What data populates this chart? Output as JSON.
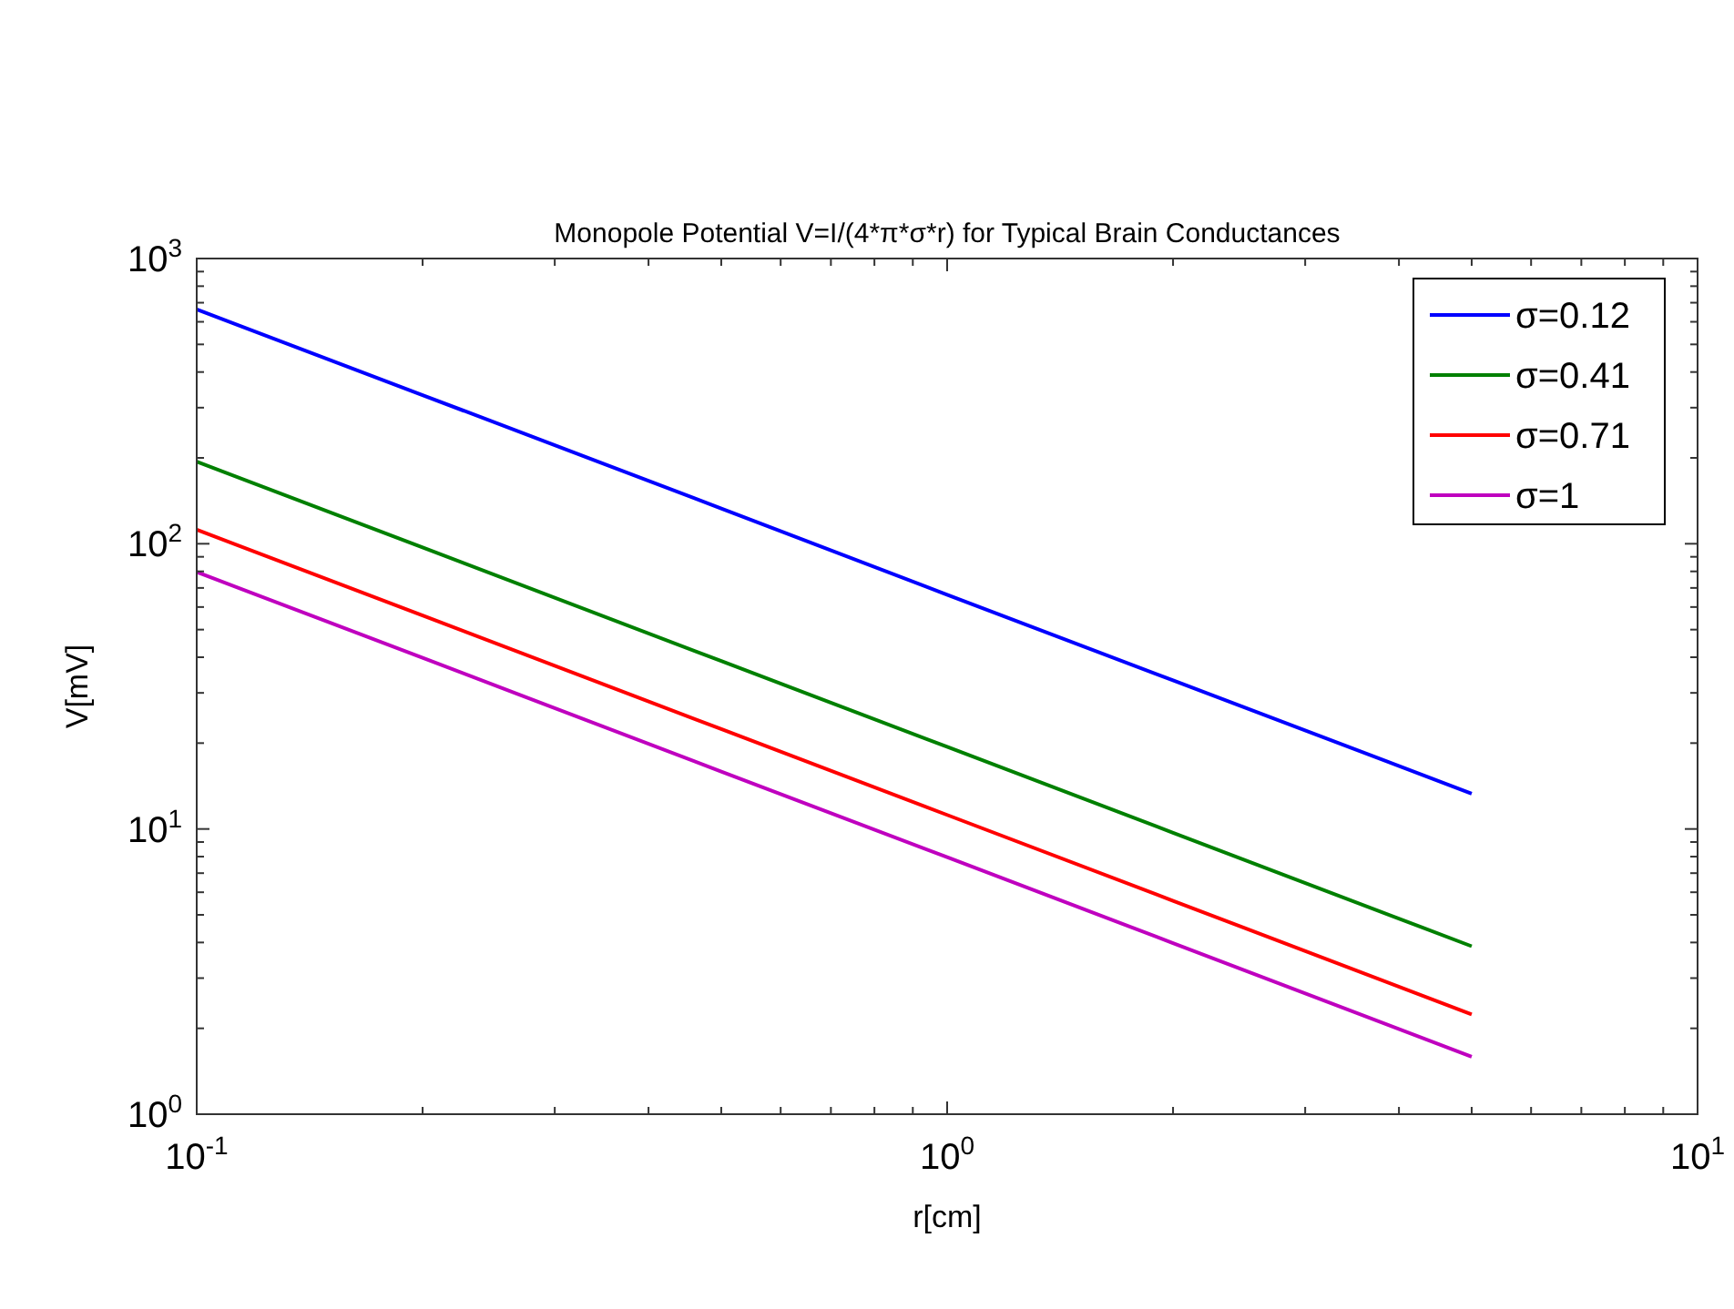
{
  "chart_data": {
    "type": "line",
    "title": "Monopole Potential V=I/(4*π*σ*r) for Typical Brain Conductances",
    "xlabel": "r[cm]",
    "ylabel": "V[mV]",
    "log": "xy",
    "grid": false,
    "legend": "top right",
    "line_style": "solid",
    "marker": "none",
    "x": [
      0.1,
      0.2,
      0.5,
      1,
      2,
      5
    ],
    "series": [
      {
        "name": "σ=0.12",
        "color": "#0000ff",
        "values": [
          663,
          332,
          133,
          66.3,
          33.2,
          13.3
        ]
      },
      {
        "name": "σ=0.41",
        "color": "#008000",
        "values": [
          194,
          97,
          38.8,
          19.4,
          9.7,
          3.88
        ]
      },
      {
        "name": "σ=0.71",
        "color": "#ff0000",
        "values": [
          112,
          56,
          22.4,
          11.2,
          5.6,
          2.24
        ]
      },
      {
        "name": "σ=1",
        "color": "#bf00bf",
        "values": [
          79.6,
          39.8,
          15.9,
          7.96,
          3.98,
          1.59
        ]
      }
    ],
    "xlim": [
      0.1,
      10
    ],
    "ylim": [
      1,
      1000
    ],
    "xticks": [
      {
        "value": 0.1,
        "label": "10$^{-1}$"
      },
      {
        "value": 0.2,
        "label": null
      },
      {
        "value": 0.3,
        "label": null
      },
      {
        "value": 0.4,
        "label": null
      },
      {
        "value": 0.5,
        "label": null
      },
      {
        "value": 0.6,
        "label": null
      },
      {
        "value": 0.7,
        "label": null
      },
      {
        "value": 0.8,
        "label": null
      },
      {
        "value": 0.9,
        "label": null
      },
      {
        "value": 1,
        "label": "10$^{0}$"
      },
      {
        "value": 2,
        "label": null
      },
      {
        "value": 3,
        "label": null
      },
      {
        "value": 4,
        "label": null
      },
      {
        "value": 5,
        "label": null
      },
      {
        "value": 6,
        "label": null
      },
      {
        "value": 7,
        "label": null
      },
      {
        "value": 8,
        "label": null
      },
      {
        "value": 9,
        "label": null
      },
      {
        "value": 10,
        "label": "10$^{1}$"
      }
    ],
    "yticks": [
      {
        "value": 1,
        "label": "10$^{0}$"
      },
      {
        "value": 2,
        "label": null
      },
      {
        "value": 3,
        "label": null
      },
      {
        "value": 4,
        "label": null
      },
      {
        "value": 5,
        "label": null
      },
      {
        "value": 6,
        "label": null
      },
      {
        "value": 7,
        "label": null
      },
      {
        "value": 8,
        "label": null
      },
      {
        "value": 9,
        "label": null
      },
      {
        "value": 10,
        "label": "10$^{1}$"
      },
      {
        "value": 20,
        "label": null
      },
      {
        "value": 30,
        "label": null
      },
      {
        "value": 40,
        "label": null
      },
      {
        "value": 50,
        "label": null
      },
      {
        "value": 60,
        "label": null
      },
      {
        "value": 70,
        "label": null
      },
      {
        "value": 80,
        "label": null
      },
      {
        "value": 90,
        "label": null
      },
      {
        "value": 100,
        "label": "10$^{2}$"
      },
      {
        "value": 200,
        "label": null
      },
      {
        "value": 300,
        "label": null
      },
      {
        "value": 400,
        "label": null
      },
      {
        "value": 500,
        "label": null
      },
      {
        "value": 600,
        "label": null
      },
      {
        "value": 700,
        "label": null
      },
      {
        "value": 800,
        "label": null
      },
      {
        "value": 900,
        "label": null
      },
      {
        "value": 1000,
        "label": "10$^{3}$"
      }
    ]
  }
}
